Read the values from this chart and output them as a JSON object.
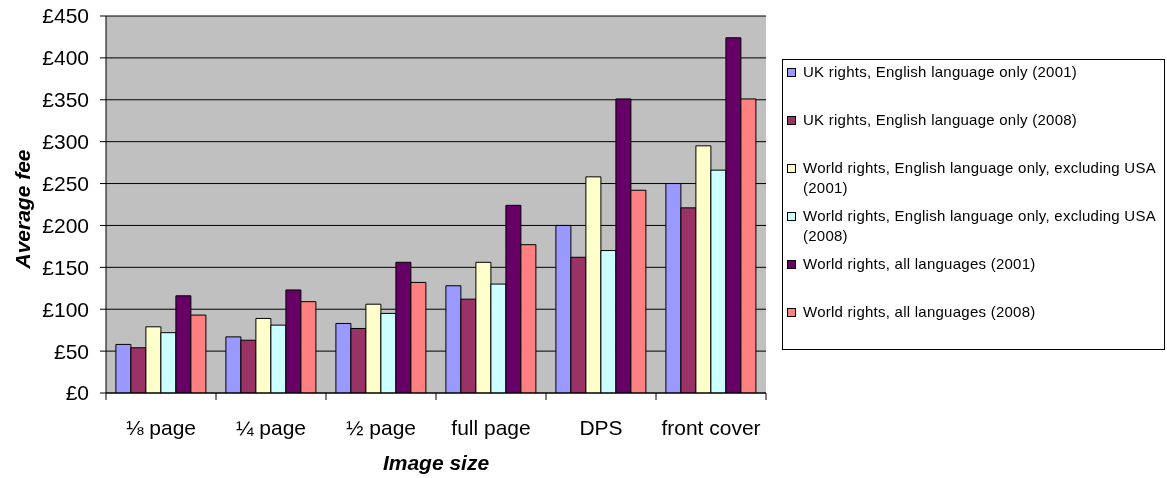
{
  "chart_data": {
    "type": "bar",
    "xlabel": "Image size",
    "ylabel": "Average fee",
    "categories": [
      "⅛ page",
      "¼ page",
      "½ page",
      "full page",
      "DPS",
      "front cover"
    ],
    "series": [
      {
        "name": "UK rights, English language only (2001)",
        "color": "#9999ff",
        "values": [
          58,
          67,
          83,
          128,
          200,
          250
        ]
      },
      {
        "name": "UK rights, English language only (2008)",
        "color": "#993366",
        "values": [
          54,
          63,
          77,
          112,
          162,
          221
        ]
      },
      {
        "name": "World rights, English language only, excluding USA (2001)",
        "color": "#ffffcc",
        "values": [
          79,
          89,
          106,
          156,
          258,
          295
        ]
      },
      {
        "name": "World rights, English language only, excluding USA (2008)",
        "color": "#ccffff",
        "values": [
          72,
          81,
          95,
          130,
          170,
          266
        ]
      },
      {
        "name": "World rights, all languages (2001)",
        "color": "#660066",
        "values": [
          116,
          123,
          156,
          224,
          351,
          424
        ]
      },
      {
        "name": "World rights, all languages (2008)",
        "color": "#ff8080",
        "values": [
          93,
          109,
          132,
          177,
          242,
          351
        ]
      }
    ],
    "ylim": [
      0,
      450
    ],
    "yticks": [
      {
        "value": 0,
        "label": "£0"
      },
      {
        "value": 50,
        "label": "£50"
      },
      {
        "value": 100,
        "label": "£100"
      },
      {
        "value": 150,
        "label": "£150"
      },
      {
        "value": 200,
        "label": "£200"
      },
      {
        "value": 250,
        "label": "£250"
      },
      {
        "value": 300,
        "label": "£300"
      },
      {
        "value": 350,
        "label": "£350"
      },
      {
        "value": 400,
        "label": "£400"
      },
      {
        "value": 450,
        "label": "£450"
      }
    ],
    "grid": "y",
    "legend": "right"
  }
}
